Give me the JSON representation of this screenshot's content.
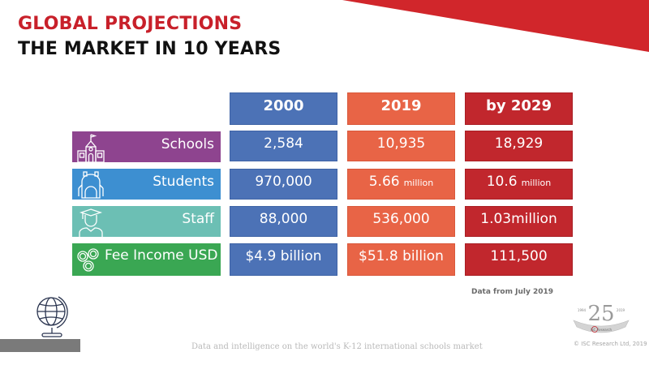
{
  "header": {
    "title_line1": "GLOBAL PROJECTIONS",
    "title_line2": "THE MARKET IN 10 YEARS"
  },
  "colors": {
    "accent_red": "#c8202a",
    "col_2000": "#4c72b6",
    "col_2019": "#e86446",
    "col_2029": "#c1272d",
    "schools": "#8e448f",
    "students": "#3d8fd1",
    "staff": "#6cbfb4",
    "fee_income": "#3aa753"
  },
  "table": {
    "columns": [
      "2000",
      "2019",
      "by 2029"
    ],
    "rows": [
      {
        "label": "Schools",
        "icon": "school-building-icon",
        "values": [
          {
            "num": "2,584",
            "unit": ""
          },
          {
            "num": "10,935",
            "unit": ""
          },
          {
            "num": "18,929",
            "unit": ""
          }
        ]
      },
      {
        "label": "Students",
        "icon": "backpack-icon",
        "values": [
          {
            "num": "970,000",
            "unit": ""
          },
          {
            "num": "5.66",
            "unit": "million"
          },
          {
            "num": "10.6",
            "unit": "million"
          }
        ]
      },
      {
        "label": "Staff",
        "icon": "graduate-icon",
        "values": [
          {
            "num": "88,000",
            "unit": ""
          },
          {
            "num": "536,000",
            "unit": ""
          },
          {
            "num": "1.03million",
            "unit": ""
          }
        ]
      },
      {
        "label": "Fee Income USD",
        "icon": "coins-icon",
        "values": [
          {
            "num": "$4.9 billion",
            "unit": ""
          },
          {
            "num": "$51.8 billion",
            "unit": ""
          },
          {
            "num": "111,500",
            "unit": ""
          }
        ]
      }
    ]
  },
  "note": "Data from July 2019",
  "footer": {
    "tagline": "Data and intelligence on the world's K-12 international schools market",
    "copyright": "© ISC Research Ltd, 2019"
  },
  "logo": {
    "number": "25",
    "year_start": "1994",
    "year_end": "2019",
    "brand": "ISC Research"
  }
}
